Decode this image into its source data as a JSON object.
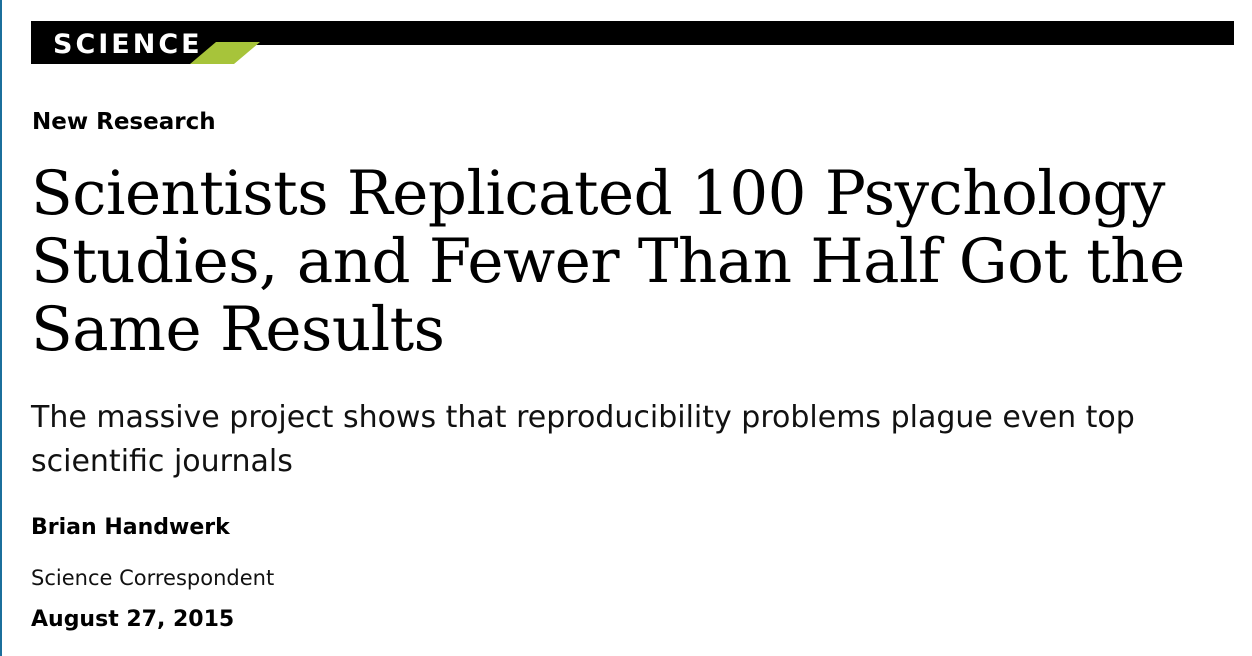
{
  "section": {
    "label": "SCIENCE",
    "accent_color": "#a7c43a"
  },
  "article": {
    "kicker": "New Research",
    "headline": "Scientists Replicated 100 Psychology Studies, and Fewer Than Half Got the Same Results",
    "dek": "The massive project shows that reproducibility problems plague even top scientific journals",
    "author": {
      "name": "Brian Handwerk",
      "role": "Science Correspondent"
    },
    "date": "August 27, 2015"
  }
}
